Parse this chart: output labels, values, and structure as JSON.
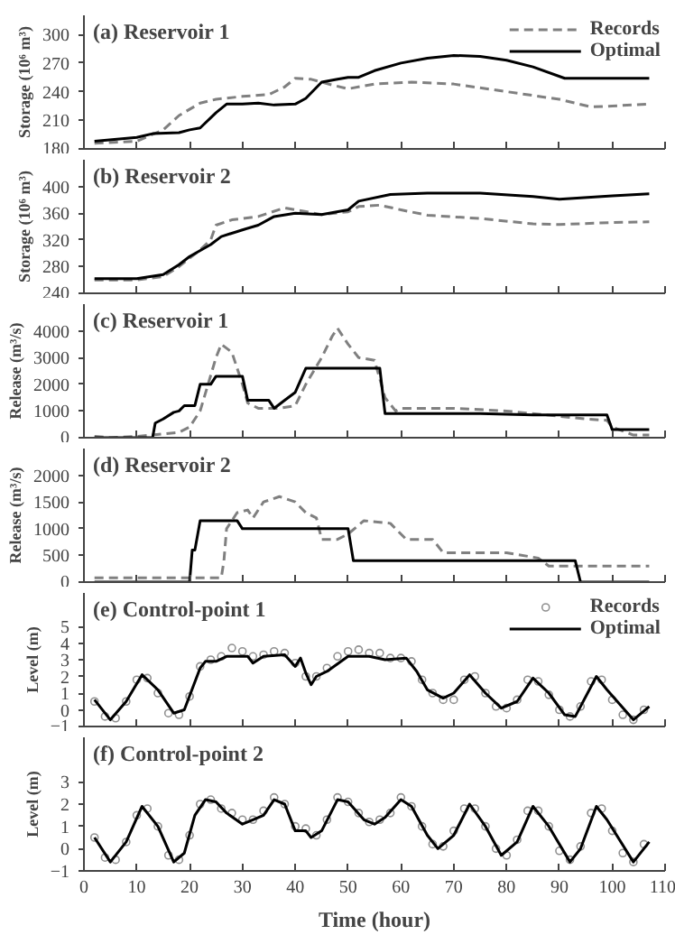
{
  "chart_data": [
    {
      "type": "line",
      "title": "(a) Reservoir 1",
      "ylabel": "Storage (10⁶ m³)",
      "xlim": [
        0,
        110
      ],
      "xticks": [
        0,
        10,
        20,
        30,
        40,
        50,
        60,
        70,
        80,
        90,
        100,
        110
      ],
      "ylim": [
        180,
        320
      ],
      "yticks": [
        180,
        210,
        240,
        270,
        300
      ],
      "tick_labels": "y",
      "legend": "top right",
      "series": [
        {
          "name": "Records",
          "color": "#808080",
          "line_style": "dashed",
          "x": [
            2,
            10,
            15,
            18,
            22,
            25,
            30,
            35,
            38,
            40,
            43,
            47,
            50,
            55,
            62,
            70,
            80,
            90,
            96,
            100,
            107
          ],
          "values": [
            186,
            188,
            200,
            215,
            228,
            232,
            235,
            237,
            245,
            254,
            253,
            247,
            243,
            248,
            250,
            248,
            240,
            232,
            224,
            225,
            227
          ]
        },
        {
          "name": "Optimal",
          "color": "#000000",
          "line_style": "solid",
          "x": [
            2,
            10,
            13,
            18,
            20,
            22,
            25,
            27,
            30,
            33,
            36,
            40,
            42,
            45,
            48,
            50,
            52,
            55,
            60,
            65,
            70,
            75,
            80,
            85,
            91,
            95,
            107
          ],
          "values": [
            188,
            192,
            196,
            197,
            200,
            202,
            218,
            227,
            227,
            228,
            226,
            227,
            233,
            250,
            253,
            255,
            255,
            262,
            270,
            275,
            278,
            277,
            273,
            266,
            254,
            254,
            254
          ]
        }
      ]
    },
    {
      "type": "line",
      "title": "(b) Reservoir 2",
      "ylabel": "Storage (10⁶ m³)",
      "xlim": [
        0,
        110
      ],
      "xticks": [
        0,
        10,
        20,
        30,
        40,
        50,
        60,
        70,
        80,
        90,
        100,
        110
      ],
      "ylim": [
        240,
        440
      ],
      "yticks": [
        240,
        280,
        320,
        360,
        400
      ],
      "tick_labels": "y",
      "series": [
        {
          "color": "#808080",
          "line_style": "dashed",
          "x": [
            2,
            10,
            15,
            18,
            22,
            24,
            25,
            28,
            33,
            38,
            40,
            45,
            50,
            52,
            56,
            60,
            65,
            75,
            85,
            90,
            100,
            107
          ],
          "values": [
            260,
            260,
            265,
            280,
            305,
            320,
            342,
            350,
            355,
            368,
            365,
            358,
            362,
            370,
            372,
            365,
            357,
            352,
            344,
            343,
            346,
            347
          ]
        },
        {
          "color": "#000000",
          "line_style": "solid",
          "x": [
            2,
            10,
            15,
            18,
            20,
            24,
            26,
            30,
            33,
            36,
            40,
            45,
            50,
            52,
            58,
            65,
            75,
            85,
            90,
            100,
            107
          ],
          "values": [
            262,
            262,
            268,
            283,
            295,
            313,
            325,
            335,
            342,
            355,
            360,
            358,
            365,
            378,
            388,
            390,
            390,
            385,
            381,
            386,
            389
          ]
        }
      ]
    },
    {
      "type": "line",
      "title": "(c) Reservoir 1",
      "ylabel": "Release (m³/s)",
      "xlim": [
        0,
        110
      ],
      "xticks": [
        0,
        10,
        20,
        30,
        40,
        50,
        60,
        70,
        80,
        90,
        100,
        110
      ],
      "ylim": [
        0,
        5000
      ],
      "yticks": [
        0,
        1000,
        2000,
        3000,
        4000
      ],
      "tick_labels": "y",
      "series": [
        {
          "color": "#808080",
          "line_style": "dashed",
          "x": [
            2,
            5,
            10,
            13,
            18,
            20,
            22,
            25,
            26,
            28,
            30,
            31,
            33,
            37,
            40,
            42,
            45,
            47,
            48,
            50,
            52,
            55,
            57,
            59,
            60,
            70,
            80,
            90,
            95,
            99,
            100,
            104,
            107
          ],
          "values": [
            50,
            0,
            50,
            100,
            200,
            400,
            1000,
            3000,
            3500,
            3200,
            2000,
            1300,
            1100,
            1100,
            1200,
            2000,
            3000,
            3800,
            4100,
            3500,
            3000,
            2900,
            1500,
            1000,
            1100,
            1100,
            1000,
            800,
            700,
            650,
            400,
            100,
            100
          ]
        },
        {
          "color": "#000000",
          "line_style": "solid",
          "x": [
            2,
            13,
            13.5,
            15,
            17,
            18,
            19,
            21,
            22,
            24,
            25,
            30,
            31,
            35,
            36,
            38,
            40,
            42,
            56,
            57,
            75,
            85,
            99,
            100,
            107
          ],
          "values": [
            0,
            0,
            550,
            700,
            950,
            1000,
            1200,
            1200,
            2000,
            2000,
            2300,
            2300,
            1400,
            1400,
            1100,
            1400,
            1700,
            2600,
            2600,
            900,
            900,
            850,
            850,
            300,
            300
          ]
        }
      ]
    },
    {
      "type": "line",
      "title": "(d) Reservoir 2",
      "ylabel": "Release (m³/s)",
      "xlim": [
        0,
        110
      ],
      "xticks": [
        0,
        10,
        20,
        30,
        40,
        50,
        60,
        70,
        80,
        90,
        100,
        110
      ],
      "ylim": [
        0,
        2500
      ],
      "yticks": [
        0,
        500,
        1000,
        1500,
        2000
      ],
      "tick_labels": "y",
      "series": [
        {
          "color": "#808080",
          "line_style": "dashed",
          "x": [
            2,
            26,
            26.5,
            27,
            29,
            31,
            32,
            34,
            37,
            40,
            42,
            44,
            45,
            48,
            50,
            53,
            58,
            61,
            66,
            68,
            80,
            86,
            88,
            95,
            107
          ],
          "values": [
            80,
            80,
            400,
            1000,
            1300,
            1350,
            1200,
            1500,
            1600,
            1500,
            1300,
            1200,
            800,
            800,
            900,
            1150,
            1100,
            800,
            800,
            550,
            550,
            450,
            300,
            300,
            300
          ]
        },
        {
          "color": "#000000",
          "line_style": "solid",
          "x": [
            2,
            20,
            20.5,
            21,
            22,
            29,
            30,
            50,
            51,
            93,
            94,
            107
          ],
          "values": [
            0,
            0,
            600,
            600,
            1150,
            1150,
            1000,
            1000,
            400,
            400,
            0,
            0
          ]
        }
      ]
    },
    {
      "type": "line",
      "title": "(e) Control-point 1",
      "ylabel": "Level (m)",
      "xlim": [
        0,
        110
      ],
      "xticks": [
        0,
        10,
        20,
        30,
        40,
        50,
        60,
        70,
        80,
        90,
        100,
        110
      ],
      "ylim": [
        -1,
        7
      ],
      "yticks": [
        -1,
        0,
        1,
        2,
        3,
        4,
        5
      ],
      "tick_labels": "y",
      "legend": "top right",
      "series": [
        {
          "name": "Records",
          "type": "scatter",
          "marker": "circle",
          "color": "#909090",
          "x": [
            2,
            4,
            6,
            8,
            10,
            12,
            14,
            16,
            18,
            20,
            22,
            24,
            26,
            28,
            30,
            32,
            34,
            36,
            38,
            40,
            42,
            44,
            46,
            48,
            50,
            52,
            54,
            56,
            58,
            60,
            62,
            64,
            66,
            68,
            70,
            72,
            74,
            76,
            78,
            80,
            82,
            84,
            86,
            88,
            90,
            92,
            94,
            96,
            98,
            100,
            102,
            104,
            106
          ],
          "values": [
            0.5,
            -0.4,
            -0.5,
            0.5,
            1.8,
            1.9,
            1.0,
            -0.2,
            -0.3,
            0.8,
            2.6,
            3.0,
            3.2,
            3.7,
            3.5,
            3.2,
            3.3,
            3.5,
            3.4,
            2.8,
            2.0,
            2.0,
            2.5,
            3.2,
            3.5,
            3.6,
            3.4,
            3.4,
            3.1,
            3.1,
            2.9,
            1.8,
            1.0,
            0.6,
            0.6,
            1.8,
            2.0,
            1.0,
            0.2,
            0.1,
            0.6,
            1.8,
            1.7,
            0.9,
            0.0,
            -0.4,
            0.2,
            1.7,
            1.8,
            0.6,
            -0.3,
            -0.6,
            0.0
          ]
        },
        {
          "name": "Optimal",
          "color": "#000000",
          "line_style": "solid",
          "x": [
            2,
            5,
            8,
            11,
            14,
            17,
            19,
            22,
            23,
            25,
            27,
            31,
            32,
            34,
            38,
            40,
            41,
            42,
            43,
            44,
            46,
            50,
            54,
            57,
            61,
            63,
            65,
            68,
            70,
            73,
            76,
            79,
            82,
            85,
            88,
            91,
            93,
            97,
            99,
            104,
            107
          ],
          "values": [
            0.6,
            -0.6,
            0.5,
            2.1,
            1.2,
            -0.2,
            0,
            2.5,
            2.9,
            2.9,
            3.2,
            3.2,
            2.8,
            3.2,
            3.3,
            2.6,
            3.1,
            2.2,
            1.5,
            2.0,
            2.3,
            3.2,
            3.2,
            3.0,
            3.1,
            2.3,
            1.2,
            0.7,
            1.0,
            2.1,
            1.0,
            0.1,
            0.5,
            1.9,
            1.0,
            -0.3,
            -0.4,
            2.0,
            1.2,
            -0.6,
            0.2
          ]
        }
      ]
    },
    {
      "type": "line",
      "title": "(f) Control-point 2",
      "ylabel": "Level (m)",
      "xlabel": "Time (hour)",
      "xlim": [
        0,
        110
      ],
      "xticks": [
        0,
        10,
        20,
        30,
        40,
        50,
        60,
        70,
        80,
        90,
        100,
        110
      ],
      "ylim": [
        -1,
        5
      ],
      "yticks": [
        -1,
        0,
        1,
        2,
        3
      ],
      "series": [
        {
          "type": "scatter",
          "marker": "circle",
          "color": "#909090",
          "x": [
            2,
            4,
            6,
            8,
            10,
            12,
            14,
            16,
            18,
            20,
            22,
            24,
            26,
            28,
            30,
            32,
            34,
            36,
            38,
            40,
            42,
            44,
            46,
            48,
            50,
            52,
            54,
            56,
            58,
            60,
            62,
            64,
            66,
            68,
            70,
            72,
            74,
            76,
            78,
            80,
            82,
            84,
            86,
            88,
            90,
            92,
            94,
            96,
            98,
            100,
            102,
            104,
            106
          ],
          "values": [
            0.5,
            -0.4,
            -0.5,
            0.3,
            1.5,
            1.8,
            1.0,
            -0.3,
            -0.5,
            0.6,
            2.0,
            2.2,
            1.8,
            1.6,
            1.3,
            1.3,
            1.7,
            2.3,
            2.0,
            1.0,
            0.9,
            0.6,
            1.3,
            2.3,
            2.1,
            1.6,
            1.2,
            1.3,
            1.6,
            2.3,
            1.9,
            1.0,
            0.2,
            0.1,
            0.8,
            1.8,
            1.8,
            1.0,
            0.0,
            -0.3,
            0.4,
            1.7,
            1.7,
            1.0,
            -0.1,
            -0.5,
            0.1,
            1.6,
            1.8,
            0.8,
            -0.2,
            -0.6,
            0.2
          ]
        },
        {
          "color": "#000000",
          "line_style": "solid",
          "x": [
            2,
            5,
            8,
            11,
            14,
            17,
            19,
            21,
            23,
            25,
            27,
            30,
            32,
            34,
            36,
            38,
            40,
            42,
            43,
            45,
            48,
            50,
            53,
            55,
            57,
            60,
            62,
            65,
            67,
            70,
            73,
            76,
            79,
            82,
            85,
            88,
            92,
            94,
            97,
            99,
            104,
            107
          ],
          "values": [
            0.5,
            -0.6,
            0.3,
            1.9,
            1.0,
            -0.6,
            -0.2,
            1.5,
            2.2,
            2.1,
            1.6,
            1.1,
            1.3,
            1.5,
            2.2,
            2.0,
            0.8,
            0.8,
            0.5,
            0.8,
            2.2,
            2.1,
            1.3,
            1.1,
            1.4,
            2.2,
            1.9,
            0.6,
            0.0,
            0.6,
            2.0,
            1.0,
            -0.3,
            0.3,
            1.9,
            1.0,
            -0.6,
            0.0,
            1.9,
            1.3,
            -0.6,
            0.3
          ]
        }
      ]
    }
  ]
}
